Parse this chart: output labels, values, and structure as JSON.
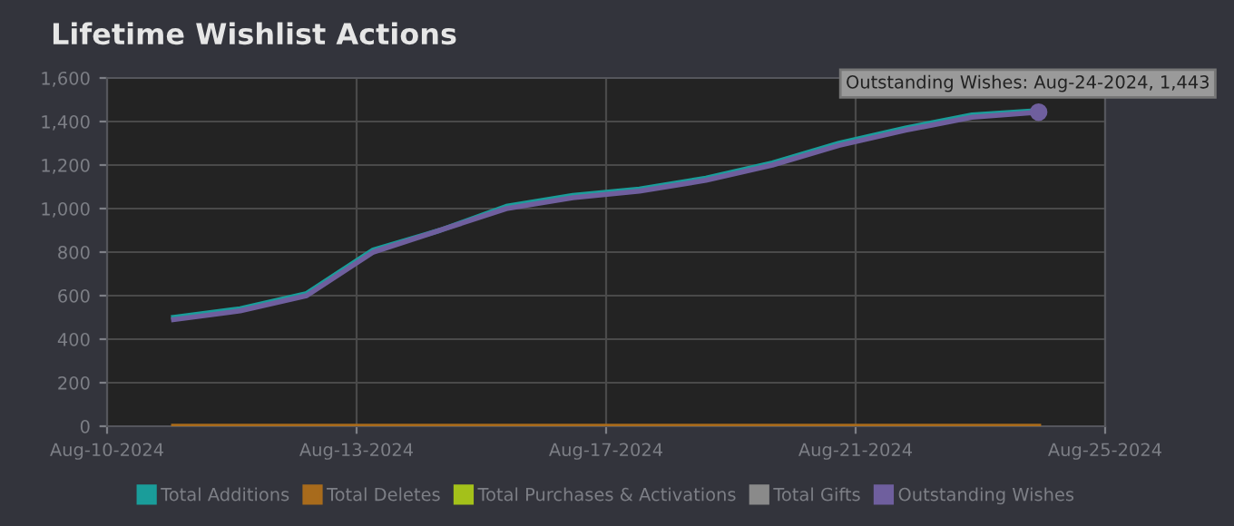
{
  "chart_data": {
    "type": "line",
    "title": "Lifetime Wishlist Actions",
    "x": [
      "2024-08-11",
      "2024-08-12",
      "2024-08-13",
      "2024-08-14",
      "2024-08-15",
      "2024-08-16",
      "2024-08-17",
      "2024-08-18",
      "2024-08-19",
      "2024-08-20",
      "2024-08-21",
      "2024-08-22",
      "2024-08-23",
      "2024-08-24"
    ],
    "series": [
      {
        "name": "Total Additions",
        "color": "#1a9d9a",
        "values": [
          500,
          540,
          610,
          810,
          900,
          1010,
          1060,
          1090,
          1140,
          1210,
          1300,
          1370,
          1430,
          1450
        ]
      },
      {
        "name": "Total Deletes",
        "color": "#a86b1c",
        "values": [
          0,
          0,
          0,
          0,
          0,
          0,
          0,
          0,
          0,
          0,
          0,
          0,
          0,
          0
        ]
      },
      {
        "name": "Total Purchases & Activations",
        "color": "#a4c11a",
        "values": [
          null,
          null,
          null,
          null,
          null,
          null,
          null,
          null,
          null,
          null,
          null,
          null,
          null,
          null
        ]
      },
      {
        "name": "Total Gifts",
        "color": "#8a8a8a",
        "values": [
          null,
          null,
          null,
          null,
          null,
          null,
          null,
          null,
          null,
          null,
          null,
          null,
          null,
          null
        ]
      },
      {
        "name": "Outstanding Wishes",
        "color": "#6f5f9e",
        "values": [
          490,
          530,
          600,
          800,
          900,
          1000,
          1050,
          1080,
          1130,
          1200,
          1290,
          1360,
          1420,
          1443
        ]
      }
    ],
    "xlim": [
      "2024-08-10",
      "2024-08-25"
    ],
    "xticks": [
      {
        "value": "2024-08-10",
        "label": "Aug-10-2024"
      },
      {
        "value": "2024-08-13T18:00",
        "label": "Aug-13-2024"
      },
      {
        "value": "2024-08-17T12:00",
        "label": "Aug-17-2024"
      },
      {
        "value": "2024-08-21T06:00",
        "label": "Aug-21-2024"
      },
      {
        "value": "2024-08-25",
        "label": "Aug-25-2024"
      }
    ],
    "ylim": [
      0,
      1600
    ],
    "yticks": [
      {
        "value": 0,
        "label": "0"
      },
      {
        "value": 200,
        "label": "200"
      },
      {
        "value": 400,
        "label": "400"
      },
      {
        "value": 600,
        "label": "600"
      },
      {
        "value": 800,
        "label": "800"
      },
      {
        "value": 1000,
        "label": "1,000"
      },
      {
        "value": 1200,
        "label": "1,200"
      },
      {
        "value": 1400,
        "label": "1,400"
      },
      {
        "value": 1600,
        "label": "1,600"
      }
    ],
    "annotations": [
      {
        "text": "Outstanding Wishes: Aug-24-2024, 1,443",
        "x": "2024-08-24",
        "y": 1443
      }
    ],
    "grid": true,
    "legend": "bottom",
    "marker": "none",
    "line_style": "solid"
  }
}
